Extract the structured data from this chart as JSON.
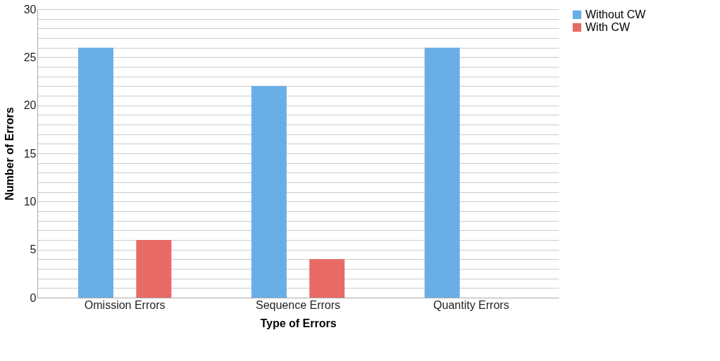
{
  "chart_data": {
    "type": "bar",
    "xlabel": "Type of Errors",
    "ylabel": "Number of Errors",
    "categories": [
      "Omission Errors",
      "Sequence Errors",
      "Quantity Errors"
    ],
    "series": [
      {
        "name": "Without CW",
        "color": "#6aaee8",
        "values": [
          26,
          22,
          26
        ]
      },
      {
        "name": "With CW",
        "color": "#e86a66",
        "values": [
          6,
          4,
          0
        ]
      }
    ],
    "ylim": [
      0,
      30
    ],
    "yticks": [
      0,
      {
        "value": 1,
        "label": null
      },
      {
        "value": 2,
        "label": null
      },
      {
        "value": 3,
        "label": null
      },
      {
        "value": 4,
        "label": null
      },
      5,
      {
        "value": 6,
        "label": null
      },
      {
        "value": 7,
        "label": null
      },
      {
        "value": 8,
        "label": null
      },
      {
        "value": 9,
        "label": null
      },
      10,
      {
        "value": 11,
        "label": null
      },
      {
        "value": 12,
        "label": null
      },
      {
        "value": 13,
        "label": null
      },
      {
        "value": 14,
        "label": null
      },
      15,
      {
        "value": 16,
        "label": null
      },
      {
        "value": 17,
        "label": null
      },
      {
        "value": 18,
        "label": null
      },
      {
        "value": 19,
        "label": null
      },
      20,
      {
        "value": 21,
        "label": null
      },
      {
        "value": 22,
        "label": null
      },
      {
        "value": 23,
        "label": null
      },
      {
        "value": 24,
        "label": null
      },
      25,
      {
        "value": 26,
        "label": null
      },
      {
        "value": 27,
        "label": null
      },
      {
        "value": 28,
        "label": null
      },
      {
        "value": 29,
        "label": null
      },
      30
    ],
    "grid": "y",
    "legend": "right"
  }
}
